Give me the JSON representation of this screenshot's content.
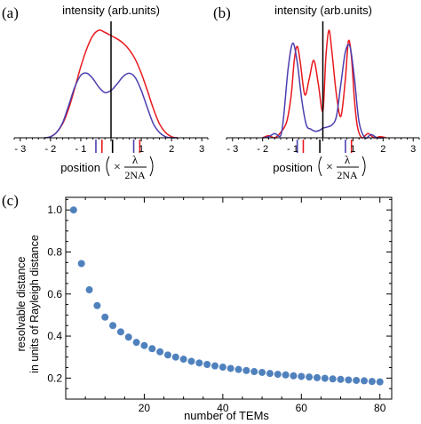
{
  "chart_data": [
    {
      "panel": "(a)",
      "type": "line",
      "title": "intensity (arb.units)",
      "xlabel": "position",
      "xlabel_factor": {
        "times": "×",
        "numerator": "λ",
        "denominator": "2NA"
      },
      "xlim": [
        -3.2,
        3.2
      ],
      "ylim": [
        0,
        1.05
      ],
      "x_ticks": [
        -3,
        -2,
        -1,
        1,
        2,
        3
      ],
      "x_tick_labels": [
        "- 3",
        "- 2",
        "- 1",
        "1",
        "2",
        "3"
      ],
      "series": [
        {
          "color": "#e8191e",
          "x": [
            -2.2,
            -2.0,
            -1.8,
            -1.6,
            -1.4,
            -1.2,
            -1.0,
            -0.8,
            -0.6,
            -0.4,
            -0.2,
            0.0,
            0.2,
            0.4,
            0.6,
            0.8,
            1.0,
            1.2,
            1.4,
            1.6,
            1.8,
            2.0,
            2.2
          ],
          "y": [
            0.0,
            0.01,
            0.05,
            0.13,
            0.27,
            0.46,
            0.66,
            0.83,
            0.95,
            1.0,
            0.98,
            0.95,
            0.92,
            0.88,
            0.82,
            0.73,
            0.6,
            0.44,
            0.27,
            0.13,
            0.05,
            0.01,
            0.0
          ]
        },
        {
          "color": "#4a3fb0",
          "x": [
            -2.2,
            -2.0,
            -1.8,
            -1.6,
            -1.4,
            -1.2,
            -1.0,
            -0.8,
            -0.6,
            -0.4,
            -0.2,
            0.0,
            0.2,
            0.4,
            0.6,
            0.8,
            1.0,
            1.2,
            1.4,
            1.6,
            1.8,
            2.0,
            2.2
          ],
          "y": [
            0.0,
            0.01,
            0.05,
            0.14,
            0.3,
            0.47,
            0.58,
            0.6,
            0.55,
            0.47,
            0.42,
            0.44,
            0.5,
            0.57,
            0.6,
            0.56,
            0.44,
            0.28,
            0.13,
            0.05,
            0.01,
            0.0,
            0.0
          ]
        }
      ],
      "markers": [
        {
          "x": -0.5,
          "color": "#4a3fb0"
        },
        {
          "x": -0.3,
          "color": "#e8191e"
        },
        {
          "x": 0.05,
          "color": "#000000"
        },
        {
          "x": 0.75,
          "color": "#4a3fb0"
        },
        {
          "x": 0.95,
          "color": "#e8191e"
        }
      ],
      "vertical_line": {
        "x": 0.0,
        "color": "#000000"
      }
    },
    {
      "panel": "(b)",
      "type": "line",
      "title": "intensity (arb.units)",
      "xlabel": "position",
      "xlabel_factor": {
        "times": "×",
        "numerator": "λ",
        "denominator": "2NA"
      },
      "xlim": [
        -3.2,
        3.2
      ],
      "ylim": [
        0,
        1.05
      ],
      "x_ticks": [
        -3,
        -2,
        -1,
        1,
        2,
        3
      ],
      "x_tick_labels": [
        "- 3",
        "- 2",
        "- 1",
        "1",
        "2",
        "3"
      ],
      "series": [
        {
          "color": "#e8191e",
          "x": [
            -2.0,
            -1.8,
            -1.6,
            -1.4,
            -1.2,
            -1.05,
            -0.95,
            -0.85,
            -0.75,
            -0.6,
            -0.45,
            -0.3,
            -0.15,
            0.0,
            0.1,
            0.2,
            0.3,
            0.45,
            0.6,
            0.75,
            0.85,
            0.95,
            1.05,
            1.15,
            1.3,
            1.5,
            1.7,
            1.9,
            2.1
          ],
          "y": [
            0.0,
            0.02,
            0.0,
            0.05,
            0.15,
            0.4,
            0.72,
            0.85,
            0.7,
            0.4,
            0.55,
            0.72,
            0.5,
            0.25,
            0.75,
            1.0,
            0.8,
            0.4,
            0.2,
            0.55,
            0.9,
            0.75,
            0.35,
            0.1,
            0.0,
            0.04,
            0.0,
            0.01,
            0.0
          ]
        },
        {
          "color": "#4a3fb0",
          "x": [
            -2.0,
            -1.8,
            -1.6,
            -1.4,
            -1.3,
            -1.15,
            -1.0,
            -0.85,
            -0.7,
            -0.55,
            -0.4,
            -0.25,
            -0.1,
            0.0,
            0.15,
            0.3,
            0.45,
            0.6,
            0.75,
            0.9,
            1.05,
            1.2,
            1.4,
            1.6,
            1.8,
            2.0
          ],
          "y": [
            0.0,
            0.01,
            0.04,
            0.02,
            0.2,
            0.65,
            0.88,
            0.7,
            0.35,
            0.12,
            0.08,
            0.06,
            0.07,
            0.09,
            0.1,
            0.12,
            0.2,
            0.5,
            0.8,
            0.85,
            0.55,
            0.15,
            0.0,
            0.03,
            0.0,
            0.0
          ]
        }
      ],
      "markers": [
        {
          "x": -0.85,
          "color": "#4a3fb0"
        },
        {
          "x": -0.65,
          "color": "#e8191e"
        },
        {
          "x": -0.1,
          "color": "#000000"
        },
        {
          "x": 0.75,
          "color": "#4a3fb0"
        },
        {
          "x": 0.95,
          "color": "#e8191e"
        }
      ],
      "vertical_line": {
        "x": 0.0,
        "color": "#000000"
      }
    },
    {
      "panel": "(c)",
      "type": "scatter",
      "title": "",
      "xlabel": "number of TEMs",
      "ylabel": [
        "resolvable distance",
        "in units of Rayleigh distance"
      ],
      "xlim": [
        0,
        83
      ],
      "ylim": [
        0.1,
        1.06
      ],
      "x_ticks": [
        20,
        40,
        60,
        80
      ],
      "y_ticks": [
        0.2,
        0.4,
        0.6,
        0.8,
        1.0
      ],
      "y_tick_labels": [
        "0.2",
        "0.4",
        "0.6",
        "0.8",
        "1.0"
      ],
      "color": "#4f81bd",
      "x": [
        2,
        4,
        6,
        8,
        10,
        12,
        14,
        16,
        18,
        20,
        22,
        24,
        26,
        28,
        30,
        32,
        34,
        36,
        38,
        40,
        42,
        44,
        46,
        48,
        50,
        52,
        54,
        56,
        58,
        60,
        62,
        64,
        66,
        68,
        70,
        72,
        74,
        76,
        78,
        80
      ],
      "y": [
        1.0,
        0.745,
        0.62,
        0.545,
        0.49,
        0.45,
        0.42,
        0.395,
        0.37,
        0.355,
        0.34,
        0.325,
        0.31,
        0.3,
        0.29,
        0.28,
        0.272,
        0.265,
        0.258,
        0.252,
        0.246,
        0.241,
        0.236,
        0.231,
        0.227,
        0.222,
        0.218,
        0.215,
        0.211,
        0.208,
        0.205,
        0.202,
        0.199,
        0.196,
        0.194,
        0.191,
        0.189,
        0.187,
        0.184,
        0.182
      ]
    }
  ]
}
